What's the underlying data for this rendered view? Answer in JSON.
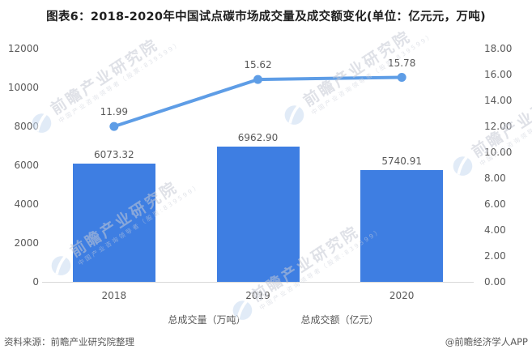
{
  "title": "图表6：2018-2020年中国试点碳市场成交量及成交额变化(单位：亿元元，万吨)",
  "chart_data": {
    "type": "combo",
    "categories": [
      "2018",
      "2019",
      "2020"
    ],
    "series": [
      {
        "name": "总成交量（万吨）",
        "type": "bar",
        "axis": "left",
        "values": [
          6073.32,
          6962.9,
          5740.91
        ],
        "labels": [
          "6073.32",
          "6962.90",
          "5740.91"
        ],
        "color": "#3E7EE2"
      },
      {
        "name": "总成交额（亿元）",
        "type": "line",
        "axis": "right",
        "values": [
          11.99,
          15.62,
          15.78
        ],
        "labels": [
          "11.99",
          "15.62",
          "15.78"
        ],
        "color": "#5E9DE6"
      }
    ],
    "left_axis": {
      "min": 0,
      "max": 12000,
      "step": 2000,
      "ticks": [
        "0",
        "2000",
        "4000",
        "6000",
        "8000",
        "10000",
        "12000"
      ]
    },
    "right_axis": {
      "min": 0,
      "max": 18,
      "step": 2,
      "ticks": [
        "0.00",
        "2.00",
        "4.00",
        "6.00",
        "8.00",
        "10.00",
        "12.00",
        "14.00",
        "16.00",
        "18.00"
      ]
    },
    "grid": false,
    "legend_position": "bottom"
  },
  "source_left": "资料来源：前瞻产业研究院整理",
  "source_right": "@前瞻经济学人APP",
  "watermark": {
    "big_text": "前瞻产业研究院",
    "small_text": "中国产业咨询领导者（股票:839599）"
  },
  "colors": {
    "bar": "#3E7EE2",
    "line": "#5E9DE6",
    "axis_text": "#595959",
    "axis_line": "#d9d9d9",
    "title_text": "#1f1f1f",
    "watermark_text": "#c6cad5",
    "watermark_logo": "#cadcf2"
  }
}
